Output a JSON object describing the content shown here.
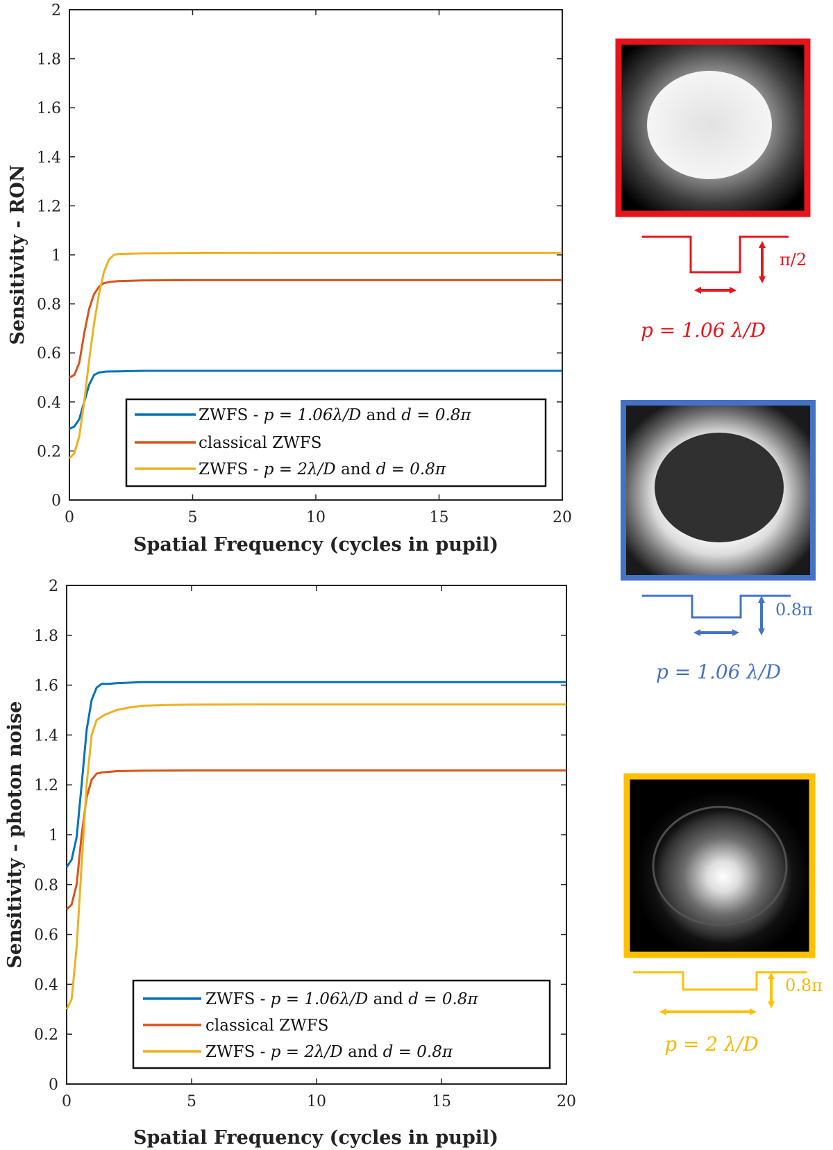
{
  "colors": {
    "blue": "#0072BD",
    "orange": "#D95319",
    "yellow": "#EDB120",
    "frame_red": "#E8141B",
    "frame_blue": "#4472C4",
    "frame_yellow": "#FFC000",
    "annot_red": "#E8141B",
    "annot_blue": "#4472C4",
    "annot_yellow": "#F5B800"
  },
  "chart_data": [
    {
      "type": "line",
      "xlabel": "Spatial Frequency (cycles in pupil)",
      "ylabel": "Sensitivity - RON",
      "xlim": [
        0,
        20
      ],
      "ylim": [
        0,
        2
      ],
      "xticks": [
        "0",
        "5",
        "10",
        "15",
        "20"
      ],
      "yticks": [
        "0",
        "0.2",
        "0.4",
        "0.6",
        "0.8",
        "1",
        "1.2",
        "1.4",
        "1.6",
        "1.8",
        "2"
      ],
      "legend_position": "bottom-center",
      "series": [
        {
          "key": "blue",
          "legend_prefix": "ZWFS - ",
          "legend_math": "p = 1.06λ/D",
          "legend_mid": " and ",
          "legend_math2": "d = 0.8π",
          "x": [
            0,
            0.2,
            0.4,
            0.6,
            0.8,
            1.0,
            1.2,
            1.5,
            2,
            3,
            5,
            8,
            12,
            16,
            20
          ],
          "y": [
            0.29,
            0.3,
            0.33,
            0.4,
            0.47,
            0.51,
            0.52,
            0.524,
            0.525,
            0.527,
            0.527,
            0.527,
            0.527,
            0.527,
            0.527
          ]
        },
        {
          "key": "orange",
          "legend_text": "classical ZWFS",
          "x": [
            0,
            0.2,
            0.4,
            0.6,
            0.8,
            1.0,
            1.2,
            1.4,
            1.7,
            2,
            3,
            5,
            8,
            12,
            16,
            20
          ],
          "y": [
            0.5,
            0.51,
            0.56,
            0.68,
            0.78,
            0.84,
            0.87,
            0.885,
            0.89,
            0.893,
            0.896,
            0.897,
            0.897,
            0.897,
            0.897,
            0.897
          ]
        },
        {
          "key": "yellow",
          "legend_prefix": "ZWFS - ",
          "legend_math": "p = 2λ/D",
          "legend_mid": " and ",
          "legend_math2": "d = 0.8π",
          "x": [
            0,
            0.2,
            0.4,
            0.6,
            0.8,
            1.0,
            1.2,
            1.4,
            1.6,
            1.8,
            2,
            2.5,
            3,
            5,
            8,
            12,
            16,
            20
          ],
          "y": [
            0.17,
            0.19,
            0.26,
            0.4,
            0.57,
            0.72,
            0.84,
            0.93,
            0.98,
            1.0,
            1.004,
            1.005,
            1.006,
            1.007,
            1.008,
            1.008,
            1.008,
            1.008
          ]
        }
      ]
    },
    {
      "type": "line",
      "xlabel": "Spatial Frequency (cycles in pupil)",
      "ylabel": "Sensitivity - photon noise",
      "xlim": [
        0,
        20
      ],
      "ylim": [
        0,
        2
      ],
      "xticks": [
        "0",
        "5",
        "10",
        "15",
        "20"
      ],
      "yticks": [
        "0",
        "0.2",
        "0.4",
        "0.6",
        "0.8",
        "1",
        "1.2",
        "1.4",
        "1.6",
        "1.8",
        "2"
      ],
      "legend_position": "bottom-center",
      "series": [
        {
          "key": "blue",
          "legend_prefix": "ZWFS - ",
          "legend_math": "p = 1.06λ/D",
          "legend_mid": " and ",
          "legend_math2": "d = 0.8π",
          "x": [
            0,
            0.2,
            0.4,
            0.6,
            0.8,
            1.0,
            1.2,
            1.4,
            1.7,
            2,
            3,
            5,
            8,
            12,
            16,
            20
          ],
          "y": [
            0.87,
            0.9,
            0.99,
            1.2,
            1.42,
            1.54,
            1.59,
            1.605,
            1.605,
            1.608,
            1.612,
            1.612,
            1.612,
            1.612,
            1.612,
            1.612
          ]
        },
        {
          "key": "orange",
          "legend_text": "classical ZWFS",
          "x": [
            0,
            0.2,
            0.4,
            0.6,
            0.8,
            1.0,
            1.2,
            1.4,
            1.7,
            2,
            3,
            5,
            8,
            12,
            16,
            20
          ],
          "y": [
            0.7,
            0.72,
            0.8,
            1.0,
            1.15,
            1.22,
            1.245,
            1.25,
            1.252,
            1.255,
            1.257,
            1.258,
            1.258,
            1.258,
            1.258,
            1.258
          ]
        },
        {
          "key": "yellow",
          "legend_prefix": "ZWFS - ",
          "legend_math": "p = 2λ/D",
          "legend_mid": " and ",
          "legend_math2": "d = 0.8π",
          "x": [
            0,
            0.2,
            0.4,
            0.6,
            0.8,
            1.0,
            1.2,
            1.5,
            2,
            2.5,
            3,
            4,
            5,
            8,
            12,
            16,
            20
          ],
          "y": [
            0.3,
            0.34,
            0.55,
            0.88,
            1.2,
            1.4,
            1.46,
            1.48,
            1.5,
            1.51,
            1.517,
            1.52,
            1.522,
            1.523,
            1.523,
            1.523,
            1.523
          ]
        }
      ]
    }
  ],
  "annotations": {
    "red": {
      "depth": "π/2",
      "pitch": "p = 1.06 λ/D"
    },
    "blue": {
      "depth": "0.8π",
      "pitch": "p = 1.06 λ/D"
    },
    "yellow": {
      "depth": "0.8π",
      "pitch": "p = 2 λ/D"
    }
  },
  "pupil_images": {
    "red": "bright-disk-image",
    "blue": "dark-disk-image",
    "yellow": "central-peak-image"
  }
}
